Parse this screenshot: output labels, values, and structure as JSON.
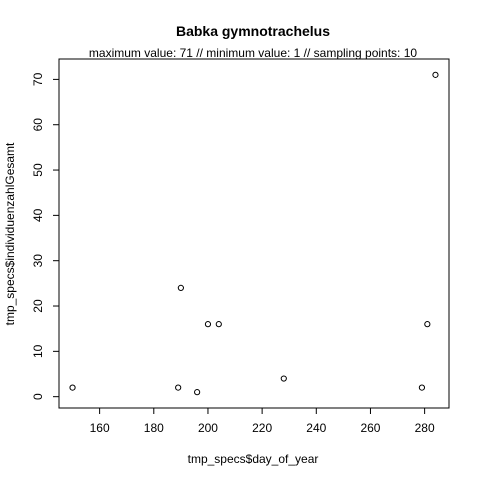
{
  "chart_data": {
    "type": "scatter",
    "title": "Babka gymnotrachelus",
    "subtitle": "maximum value: 71  //  minimum value: 1  // sampling points: 10",
    "xlabel": "tmp_specs$day_of_year",
    "ylabel": "tmp_specs$individuenzahlGesamt",
    "xlim": [
      145,
      289
    ],
    "ylim": [
      -2.5,
      74.5
    ],
    "xticks": [
      160,
      180,
      200,
      220,
      240,
      260,
      280
    ],
    "yticks": [
      0,
      10,
      20,
      30,
      40,
      50,
      60,
      70
    ],
    "series": [
      {
        "name": "points",
        "x": [
          150,
          189,
          190,
          196,
          200,
          204,
          228,
          279,
          281,
          284
        ],
        "y": [
          2,
          2,
          24,
          1,
          16,
          16,
          4,
          2,
          16,
          71
        ]
      }
    ],
    "marker": "open-circle",
    "grid": false
  }
}
